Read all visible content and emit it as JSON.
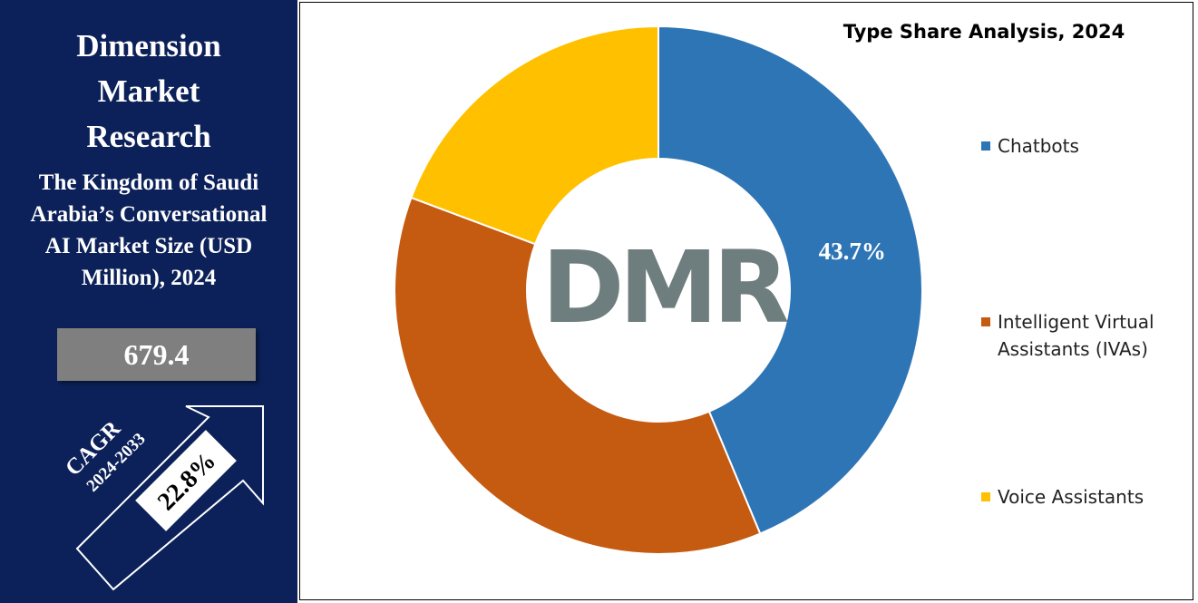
{
  "brand": "Dimension Market Research",
  "headline": "The Kingdom of Saudi Arabia’s Conversational AI Market Size (USD Million), 2024",
  "market_size": "679.4",
  "cagr_label": "CAGR",
  "cagr_period": "2024-2033",
  "cagr_value": "22.8%",
  "chart_data": {
    "type": "donut",
    "title": "Type Share Analysis, 2024",
    "categories": [
      "Chatbots",
      "Intelligent Virtual Assistants (IVAs)",
      "Voice Assistants"
    ],
    "values": [
      43.7,
      37.0,
      19.3
    ],
    "value_labels": [
      "43.7%",
      null,
      null
    ],
    "colors": [
      "#2e75b6",
      "#c55a11",
      "#ffc000"
    ],
    "center_logo": "DMR",
    "legend": "right"
  }
}
